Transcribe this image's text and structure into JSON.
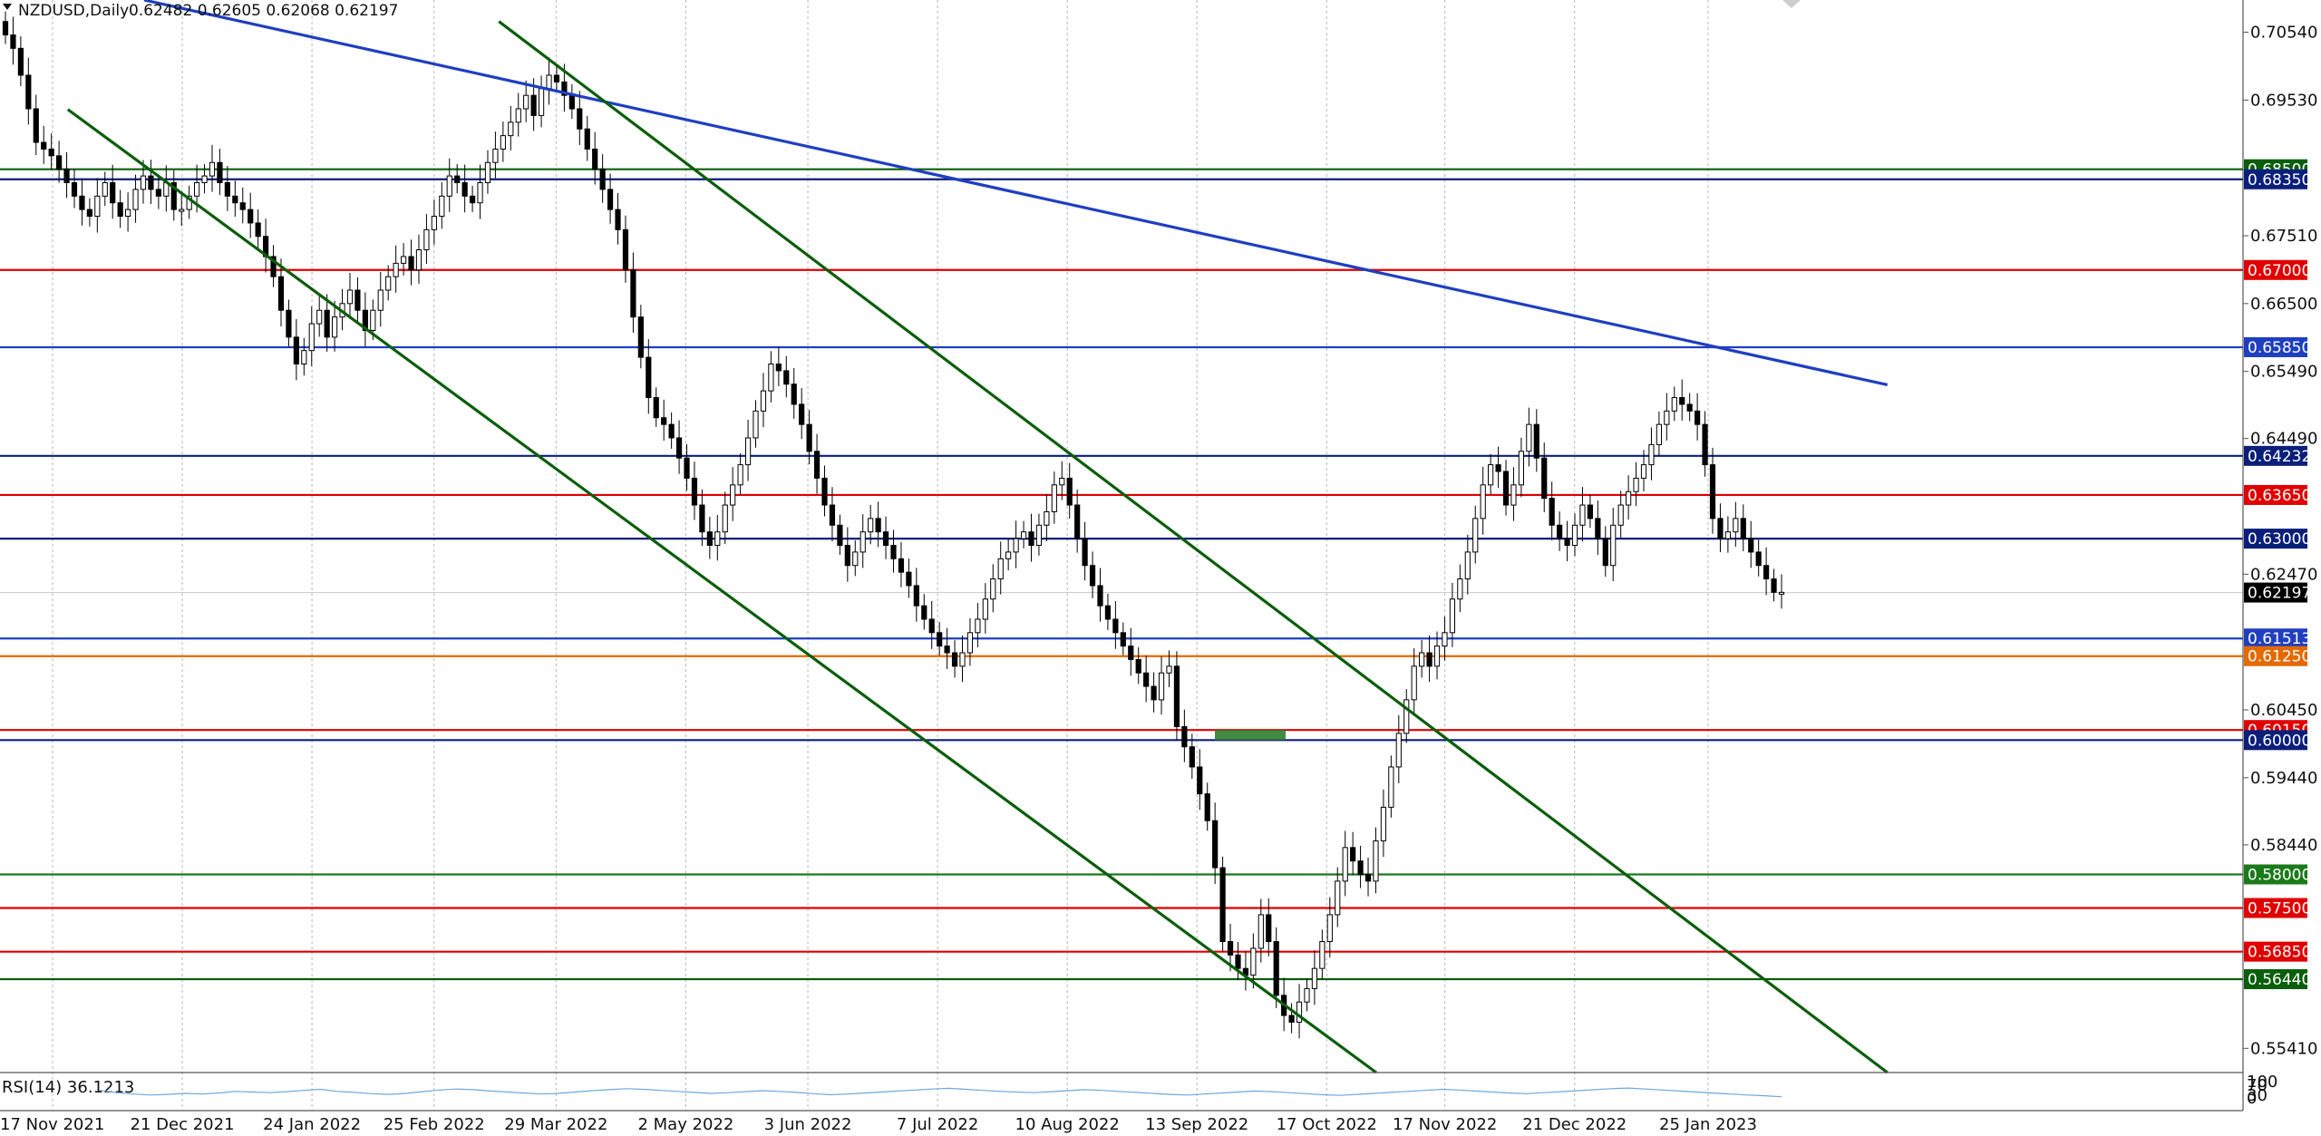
{
  "header": {
    "symbol": "NZDUSD,Daily",
    "ohlc": "0.62482 0.62605 0.62068 0.62197"
  },
  "rsi": {
    "label": "RSI(14) 36.1213",
    "levels": [
      "100",
      "70",
      "30",
      "0"
    ]
  },
  "colors": {
    "candle": "#000000",
    "grid": "#b8b8b8",
    "navy": "#0a1f7a",
    "blue": "#1f3fc0",
    "red": "#e00000",
    "orange": "#e36a00",
    "green": "#1a7a1a",
    "darkgreen": "#0b5e0b",
    "rsiLine": "#6fa8dc"
  },
  "chart_data": {
    "type": "candlestick",
    "x_ticks": [
      "17 Nov 2021",
      "21 Dec 2021",
      "24 Jan 2022",
      "25 Feb 2022",
      "29 Mar 2022",
      "2 May 2022",
      "3 Jun 2022",
      "7 Jul 2022",
      "10 Aug 2022",
      "13 Sep 2022",
      "17 Oct 2022",
      "17 Nov 2022",
      "21 Dec 2022",
      "25 Jan 2023"
    ],
    "y_ticks": [
      "0.70540",
      "0.69530",
      "0.67510",
      "0.66500",
      "0.65490",
      "0.64490",
      "0.62470",
      "0.60450",
      "0.59440",
      "0.58440",
      "0.55410"
    ],
    "ylim": [
      0.5505,
      0.7102
    ],
    "horizontal_levels": [
      {
        "label": "0.68500",
        "value": 0.685,
        "color": "darkgreen"
      },
      {
        "label": "0.68350",
        "value": 0.6835,
        "color": "navy"
      },
      {
        "label": "0.67000",
        "value": 0.67,
        "color": "red"
      },
      {
        "label": "0.65850",
        "value": 0.6585,
        "color": "blue"
      },
      {
        "label": "0.64232",
        "value": 0.64232,
        "color": "navy"
      },
      {
        "label": "0.63650",
        "value": 0.6365,
        "color": "red"
      },
      {
        "label": "0.63000",
        "value": 0.63,
        "color": "navy"
      },
      {
        "label": "0.61513",
        "value": 0.61513,
        "color": "blue"
      },
      {
        "label": "0.61250",
        "value": 0.6125,
        "color": "orange"
      },
      {
        "label": "0.60150",
        "value": 0.6015,
        "color": "red"
      },
      {
        "label": "0.60000",
        "value": 0.6,
        "color": "navy"
      },
      {
        "label": "0.58000",
        "value": 0.58,
        "color": "green"
      },
      {
        "label": "0.57500",
        "value": 0.575,
        "color": "red"
      },
      {
        "label": "0.56850",
        "value": 0.5685,
        "color": "red"
      },
      {
        "label": "0.56440",
        "value": 0.5644,
        "color": "darkgreen"
      }
    ],
    "current_price": {
      "label": "0.62197",
      "value": 0.62197
    },
    "trendlines": [
      {
        "name": "",
        "color": "blue",
        "from": [
          "11 Dec 2021",
          0.7102
        ],
        "to": [
          "13 Mar 2023",
          0.6529
        ]
      },
      {
        "name": "",
        "color": "darkgreen",
        "from": [
          "21 Nov 2021",
          0.6939
        ],
        "to": [
          "30 Oct 2022",
          0.5505
        ]
      },
      {
        "name": "",
        "color": "darkgreen",
        "from": [
          "14 Mar 2022",
          0.707
        ],
        "to": [
          "13 Mar 2023",
          0.5505
        ]
      }
    ],
    "closes": [
      0.705,
      0.703,
      0.699,
      0.694,
      0.689,
      0.688,
      0.687,
      0.685,
      0.683,
      0.681,
      0.679,
      0.678,
      0.681,
      0.683,
      0.68,
      0.678,
      0.679,
      0.682,
      0.684,
      0.682,
      0.681,
      0.683,
      0.679,
      0.679,
      0.681,
      0.683,
      0.684,
      0.686,
      0.683,
      0.681,
      0.68,
      0.679,
      0.677,
      0.675,
      0.672,
      0.669,
      0.664,
      0.66,
      0.656,
      0.658,
      0.662,
      0.664,
      0.66,
      0.663,
      0.665,
      0.667,
      0.664,
      0.661,
      0.664,
      0.667,
      0.669,
      0.671,
      0.672,
      0.67,
      0.673,
      0.676,
      0.678,
      0.681,
      0.684,
      0.683,
      0.681,
      0.68,
      0.683,
      0.686,
      0.688,
      0.69,
      0.692,
      0.694,
      0.696,
      0.693,
      0.697,
      0.699,
      0.698,
      0.696,
      0.694,
      0.691,
      0.688,
      0.685,
      0.682,
      0.679,
      0.676,
      0.67,
      0.663,
      0.657,
      0.651,
      0.648,
      0.647,
      0.645,
      0.642,
      0.639,
      0.635,
      0.631,
      0.629,
      0.631,
      0.635,
      0.638,
      0.641,
      0.645,
      0.649,
      0.652,
      0.656,
      0.655,
      0.653,
      0.65,
      0.647,
      0.643,
      0.639,
      0.635,
      0.632,
      0.629,
      0.626,
      0.628,
      0.631,
      0.633,
      0.631,
      0.629,
      0.627,
      0.625,
      0.623,
      0.62,
      0.618,
      0.616,
      0.614,
      0.613,
      0.611,
      0.613,
      0.616,
      0.618,
      0.621,
      0.624,
      0.627,
      0.628,
      0.63,
      0.631,
      0.629,
      0.632,
      0.634,
      0.638,
      0.639,
      0.635,
      0.63,
      0.626,
      0.623,
      0.62,
      0.618,
      0.616,
      0.614,
      0.612,
      0.61,
      0.608,
      0.606,
      0.61,
      0.611,
      0.602,
      0.599,
      0.596,
      0.592,
      0.588,
      0.581,
      0.57,
      0.568,
      0.566,
      0.565,
      0.569,
      0.574,
      0.57,
      0.562,
      0.559,
      0.558,
      0.561,
      0.563,
      0.566,
      0.57,
      0.574,
      0.579,
      0.584,
      0.582,
      0.58,
      0.579,
      0.585,
      0.59,
      0.596,
      0.601,
      0.606,
      0.611,
      0.613,
      0.611,
      0.614,
      0.616,
      0.621,
      0.624,
      0.628,
      0.633,
      0.638,
      0.641,
      0.64,
      0.635,
      0.638,
      0.643,
      0.647,
      0.642,
      0.636,
      0.632,
      0.63,
      0.629,
      0.632,
      0.635,
      0.633,
      0.63,
      0.626,
      0.632,
      0.635,
      0.637,
      0.639,
      0.641,
      0.644,
      0.647,
      0.649,
      0.651,
      0.65,
      0.649,
      0.647,
      0.641,
      0.633,
      0.63,
      0.631,
      0.633,
      0.63,
      0.628,
      0.626,
      0.624,
      0.622,
      0.622
    ],
    "rsi_values": [
      55,
      48,
      44,
      41,
      43,
      46,
      44,
      47,
      52,
      50,
      48,
      51,
      55,
      58,
      52,
      49,
      45,
      43,
      46,
      51,
      56,
      59,
      57,
      53,
      50,
      47,
      44,
      46,
      50,
      54,
      57,
      60,
      58,
      55,
      52,
      49,
      46,
      48,
      51,
      54,
      52,
      49,
      45,
      42,
      44,
      47,
      50,
      53,
      56,
      59,
      61,
      58,
      55,
      52,
      50,
      48,
      51,
      54,
      57,
      55,
      52,
      49,
      46,
      43,
      41,
      44,
      47,
      50,
      53,
      51,
      48,
      45,
      42,
      40,
      43,
      46,
      49,
      52,
      55,
      58,
      56,
      53,
      50,
      47,
      45,
      48,
      51,
      54,
      57,
      60,
      62,
      59,
      56,
      53,
      50,
      47,
      44,
      41,
      39,
      36
    ]
  }
}
